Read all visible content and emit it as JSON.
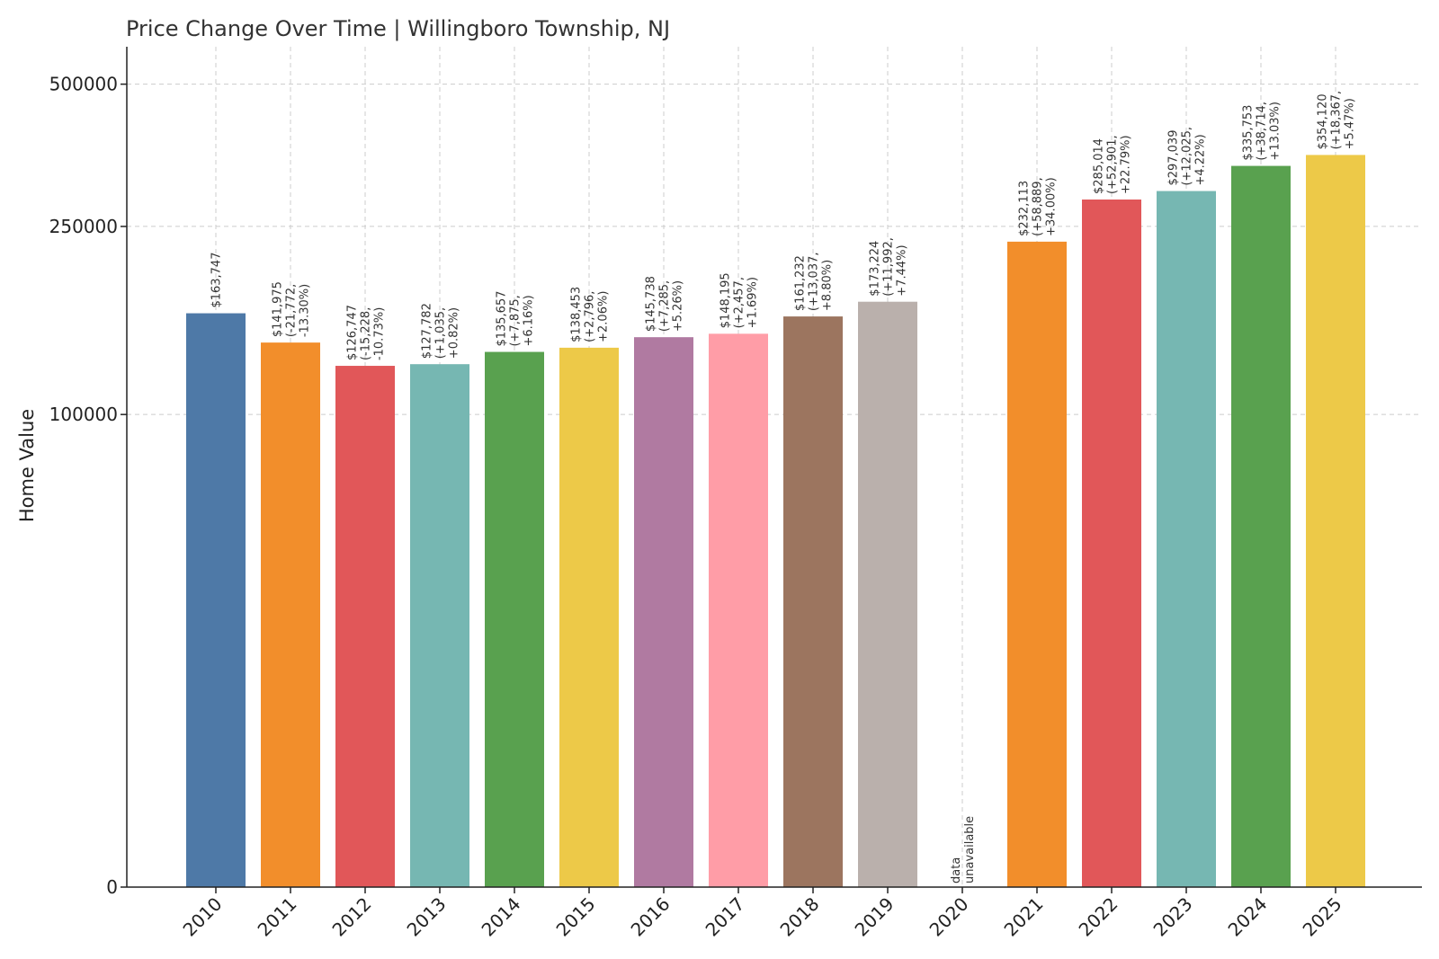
{
  "chart_data": {
    "type": "bar",
    "title": "Price Change Over Time | Willingboro Township, NJ",
    "xlabel": "",
    "ylabel": "Home Value",
    "ylim": [
      0,
      600000
    ],
    "y_scale": "symlog",
    "yticks": [
      0,
      100000,
      250000,
      500000
    ],
    "ytick_labels": [
      "0",
      "100000",
      "250000",
      "500000"
    ],
    "grid": true,
    "categories": [
      "2010",
      "2011",
      "2012",
      "2013",
      "2014",
      "2015",
      "2016",
      "2017",
      "2018",
      "2019",
      "2020",
      "2021",
      "2022",
      "2023",
      "2024",
      "2025"
    ],
    "values": [
      163747,
      141975,
      126747,
      127782,
      135657,
      138453,
      145738,
      148195,
      161232,
      173224,
      null,
      232113,
      285014,
      297039,
      335753,
      354120
    ],
    "colors": [
      "#4e79a7",
      "#f28e2b",
      "#e15759",
      "#76b7b2",
      "#59a14f",
      "#edc948",
      "#b07aa1",
      "#ff9da7",
      "#9c755f",
      "#bab0ac",
      "#cccccc",
      "#f28e2b",
      "#e15759",
      "#76b7b2",
      "#59a14f",
      "#edc948"
    ],
    "data_labels": [
      [
        "$163,747"
      ],
      [
        "$141,975",
        "(-21,772,",
        "-13.30%)"
      ],
      [
        "$126,747",
        "(-15,228,",
        "-10.73%)"
      ],
      [
        "$127,782",
        "(+1,035,",
        "+0.82%)"
      ],
      [
        "$135,657",
        "(+7,875,",
        "+6.16%)"
      ],
      [
        "$138,453",
        "(+2,796,",
        "+2.06%)"
      ],
      [
        "$145,738",
        "(+7,285,",
        "+5.26%)"
      ],
      [
        "$148,195",
        "(+2,457,",
        "+1.69%)"
      ],
      [
        "$161,232",
        "(+13,037,",
        "+8.80%)"
      ],
      [
        "$173,224",
        "(+11,992,",
        "+7.44%)"
      ],
      [
        "data",
        "unavailable"
      ],
      [
        "$232,113",
        "(+58,889,",
        "+34.00%)"
      ],
      [
        "$285,014",
        "(+52,901,",
        "+22.79%)"
      ],
      [
        "$297,039",
        "(+12,025,",
        "+4.22%)"
      ],
      [
        "$335,753",
        "(+38,714,",
        "+13.03%)"
      ],
      [
        "$354,120",
        "(+18,367,",
        "+5.47%)"
      ]
    ]
  }
}
